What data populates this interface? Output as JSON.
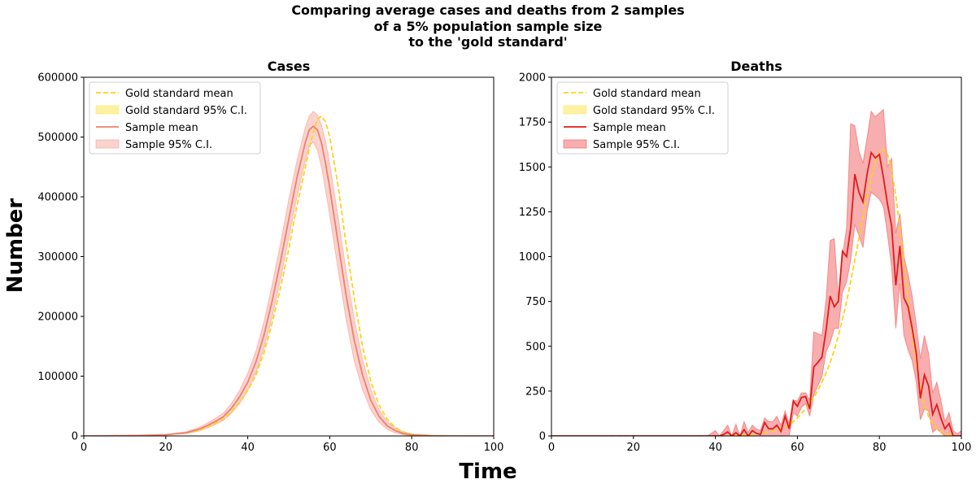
{
  "figure": {
    "title_lines": [
      "Comparing average cases and deaths from 2 samples",
      "of a 5% population sample size",
      "to the 'gold standard'"
    ],
    "xlabel": "Time",
    "ylabel": "Number"
  },
  "legend_labels": {
    "gold_mean": "Gold standard mean",
    "gold_ci": "Gold standard 95% C.I.",
    "sample_mean": "Sample mean",
    "sample_ci": "Sample 95% C.I."
  },
  "colors": {
    "gold_mean": "#FFD21A",
    "gold_ci": "#FFE866",
    "cases_sample_mean": "#F08070",
    "cases_sample_ci": "#F7A79C",
    "deaths_sample_mean": "#E31A1C",
    "deaths_sample_ci": "#F26B6B"
  },
  "chart_data": [
    {
      "type": "line",
      "title": "Cases",
      "xlabel": "",
      "ylabel": "",
      "xlim": [
        0,
        100
      ],
      "ylim": [
        0,
        600000
      ],
      "xticks": [
        0,
        20,
        40,
        60,
        80,
        100
      ],
      "yticks": [
        0,
        100000,
        200000,
        300000,
        400000,
        500000,
        600000
      ],
      "grid": false,
      "legend": "top-left",
      "x": [
        0,
        5,
        10,
        15,
        20,
        25,
        28,
        30,
        32,
        34,
        36,
        38,
        40,
        42,
        44,
        46,
        48,
        50,
        52,
        54,
        55,
        56,
        57,
        58,
        59,
        60,
        62,
        64,
        66,
        68,
        70,
        72,
        74,
        76,
        78,
        80,
        85,
        90,
        95,
        100
      ],
      "series": [
        {
          "name": "Gold standard mean",
          "style": "dashed",
          "values": [
            0,
            200,
            500,
            1000,
            2000,
            5000,
            9000,
            14000,
            21000,
            28000,
            40000,
            56000,
            76000,
            102000,
            140000,
            190000,
            248000,
            312000,
            385000,
            448000,
            480000,
            508000,
            530000,
            535000,
            525000,
            500000,
            420000,
            320000,
            230000,
            150000,
            92000,
            52000,
            28000,
            14000,
            6500,
            3000,
            500,
            100,
            0,
            0
          ]
        },
        {
          "name": "Sample mean",
          "style": "solid",
          "values": [
            0,
            200,
            500,
            1000,
            2000,
            5500,
            11000,
            17000,
            24000,
            32000,
            46000,
            65000,
            90000,
            124000,
            170000,
            227000,
            292000,
            362000,
            432000,
            490000,
            512000,
            518000,
            512000,
            490000,
            455000,
            415000,
            325000,
            235000,
            160000,
            102000,
            60000,
            33000,
            17000,
            9000,
            4000,
            1800,
            300,
            0,
            0,
            0
          ]
        },
        {
          "name": "Sample 95% C.I.",
          "style": "band",
          "lower": [
            0,
            100,
            300,
            700,
            1500,
            4000,
            8000,
            13000,
            19000,
            26000,
            38000,
            54000,
            76000,
            106000,
            148000,
            200000,
            262000,
            330000,
            400000,
            460000,
            485000,
            492000,
            478000,
            450000,
            410000,
            370000,
            280000,
            195000,
            125000,
            78000,
            44000,
            23000,
            11000,
            5000,
            2000,
            700,
            0,
            0,
            0,
            0
          ],
          "upper": [
            0,
            300,
            700,
            1300,
            2600,
            7000,
            14000,
            21000,
            29000,
            38000,
            54000,
            76000,
            105000,
            142000,
            192000,
            254000,
            322000,
            395000,
            460000,
            515000,
            535000,
            543000,
            537000,
            520000,
            492000,
            455000,
            368000,
            275000,
            195000,
            128000,
            78000,
            44000,
            24000,
            13000,
            6500,
            3000,
            800,
            100,
            0,
            0
          ]
        }
      ]
    },
    {
      "type": "line",
      "title": "Deaths",
      "xlabel": "",
      "ylabel": "",
      "xlim": [
        0,
        100
      ],
      "ylim": [
        0,
        2000
      ],
      "xticks": [
        0,
        20,
        40,
        60,
        80,
        100
      ],
      "yticks": [
        0,
        250,
        500,
        750,
        1000,
        1250,
        1500,
        1750,
        2000
      ],
      "grid": false,
      "legend": "top-left",
      "x": [
        0,
        5,
        10,
        15,
        20,
        25,
        30,
        35,
        38,
        40,
        41,
        42,
        43,
        44,
        45,
        46,
        47,
        48,
        49,
        50,
        51,
        52,
        53,
        54,
        55,
        56,
        57,
        58,
        59,
        60,
        61,
        62,
        63,
        64,
        65,
        66,
        67,
        68,
        69,
        70,
        71,
        72,
        73,
        74,
        75,
        76,
        77,
        78,
        79,
        80,
        81,
        82,
        83,
        84,
        85,
        86,
        87,
        88,
        89,
        90,
        91,
        92,
        93,
        94,
        95,
        96,
        97,
        98,
        99,
        100
      ],
      "series": [
        {
          "name": "Gold standard mean",
          "style": "dashed",
          "values": [
            0,
            0,
            0,
            0,
            0,
            0,
            0,
            0,
            0,
            0,
            0,
            0,
            0,
            1,
            2,
            3,
            5,
            7,
            9,
            12,
            15,
            18,
            22,
            27,
            33,
            40,
            50,
            62,
            78,
            100,
            125,
            150,
            180,
            215,
            255,
            300,
            350,
            410,
            480,
            560,
            650,
            750,
            860,
            980,
            1100,
            1220,
            1340,
            1440,
            1520,
            1580,
            1600,
            1570,
            1480,
            1340,
            1160,
            960,
            760,
            570,
            400,
            270,
            170,
            110,
            70,
            40,
            25,
            15,
            8,
            3,
            1,
            0
          ]
        },
        {
          "name": "Sample mean",
          "style": "solid",
          "values": [
            0,
            0,
            0,
            0,
            0,
            0,
            0,
            0,
            0,
            0,
            0,
            8,
            22,
            0,
            18,
            0,
            35,
            0,
            30,
            15,
            8,
            75,
            40,
            40,
            60,
            25,
            110,
            40,
            195,
            165,
            215,
            220,
            150,
            385,
            410,
            440,
            590,
            780,
            720,
            750,
            1030,
            1000,
            1160,
            1460,
            1360,
            1305,
            1460,
            1580,
            1550,
            1570,
            1440,
            1290,
            1170,
            840,
            1060,
            770,
            720,
            600,
            460,
            210,
            340,
            280,
            120,
            175,
            100,
            40,
            70,
            0,
            0,
            0
          ]
        },
        {
          "name": "Sample 95% C.I.",
          "style": "band",
          "lower": [
            0,
            0,
            0,
            0,
            0,
            0,
            0,
            0,
            0,
            0,
            0,
            0,
            0,
            0,
            0,
            0,
            0,
            0,
            0,
            0,
            0,
            0,
            0,
            0,
            0,
            0,
            0,
            0,
            130,
            110,
            160,
            180,
            110,
            230,
            280,
            330,
            470,
            520,
            600,
            600,
            800,
            860,
            980,
            1180,
            1120,
            1050,
            1250,
            1360,
            1340,
            1320,
            1280,
            1120,
            940,
            600,
            850,
            560,
            480,
            420,
            300,
            90,
            150,
            140,
            20,
            40,
            20,
            0,
            0,
            0,
            0,
            0
          ],
          "upper": [
            0,
            0,
            0,
            0,
            0,
            0,
            0,
            0,
            0,
            30,
            0,
            30,
            60,
            0,
            65,
            0,
            80,
            20,
            60,
            40,
            30,
            100,
            80,
            80,
            110,
            60,
            140,
            70,
            200,
            195,
            240,
            240,
            200,
            580,
            570,
            560,
            760,
            1090,
            1100,
            760,
            1000,
            1160,
            1740,
            1730,
            1590,
            1520,
            1660,
            1810,
            1780,
            1800,
            1820,
            1500,
            1550,
            1130,
            1240,
            1000,
            900,
            780,
            620,
            430,
            560,
            460,
            240,
            300,
            200,
            80,
            130,
            30,
            10,
            30
          ]
        }
      ]
    }
  ]
}
